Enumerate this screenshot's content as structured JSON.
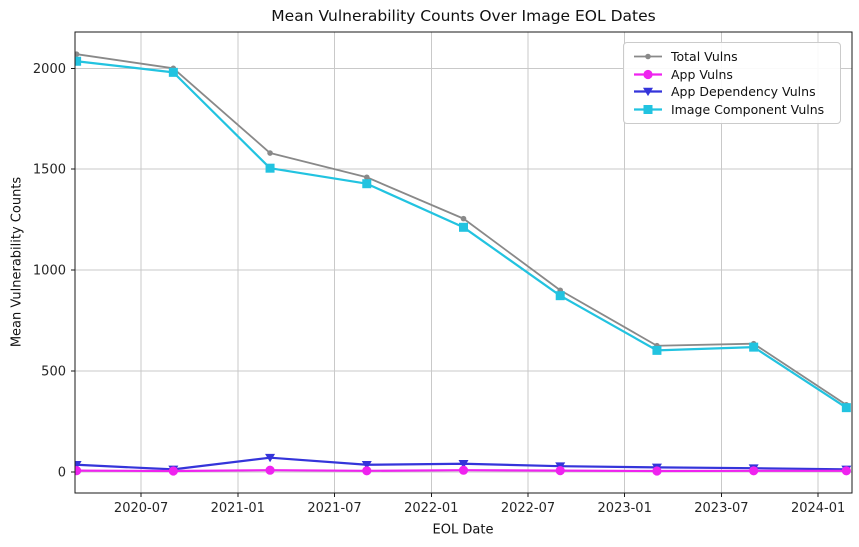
{
  "chart_data": {
    "type": "line",
    "title": "Mean Vulnerability Counts Over Image EOL Dates",
    "xlabel": "EOL Date",
    "ylabel": "Mean Vulnerability Counts",
    "x_dates": [
      "2020-03",
      "2020-09",
      "2021-03",
      "2021-09",
      "2022-03",
      "2022-09",
      "2023-03",
      "2023-09",
      "2024-02"
    ],
    "x_months": [
      0,
      6,
      12,
      18,
      24,
      30,
      36,
      42,
      47.75
    ],
    "series": [
      {
        "name": "Total Vulns",
        "color": "#898989",
        "marker": "circle-small",
        "line_width": 1.8,
        "values": [
          2070,
          2000,
          1580,
          1460,
          1255,
          900,
          625,
          635,
          332
        ]
      },
      {
        "name": "App Vulns",
        "color": "#ef23ef",
        "marker": "circle",
        "line_width": 2.2,
        "values": [
          6,
          4,
          8,
          5,
          8,
          6,
          4,
          5,
          5
        ]
      },
      {
        "name": "App Dependency Vulns",
        "color": "#3434da",
        "marker": "triangle-down",
        "line_width": 2.2,
        "values": [
          35,
          12,
          70,
          35,
          40,
          28,
          22,
          18,
          12
        ]
      },
      {
        "name": "Image Component Vulns",
        "color": "#22c3e0",
        "marker": "square",
        "line_width": 2.2,
        "values": [
          2035,
          1980,
          1505,
          1428,
          1212,
          873,
          602,
          618,
          318
        ]
      }
    ],
    "x_ticks": [
      {
        "pos": 4,
        "label": "2020-07"
      },
      {
        "pos": 10,
        "label": "2021-01"
      },
      {
        "pos": 16,
        "label": "2021-07"
      },
      {
        "pos": 22,
        "label": "2022-01"
      },
      {
        "pos": 28,
        "label": "2022-07"
      },
      {
        "pos": 34,
        "label": "2023-01"
      },
      {
        "pos": 40,
        "label": "2023-07"
      },
      {
        "pos": 46,
        "label": "2024-01"
      }
    ],
    "y_ticks": [
      0,
      500,
      1000,
      1500,
      2000
    ],
    "xlim": [
      -0.1,
      48.1
    ],
    "ylim": [
      -105,
      2180
    ],
    "grid": true,
    "grid_color": "#c9c9c9",
    "spine_color": "#1a1a1a",
    "tick_label_color": "#262626",
    "legend_position": "upper right",
    "draw_order": [
      0,
      2,
      1,
      3
    ]
  }
}
